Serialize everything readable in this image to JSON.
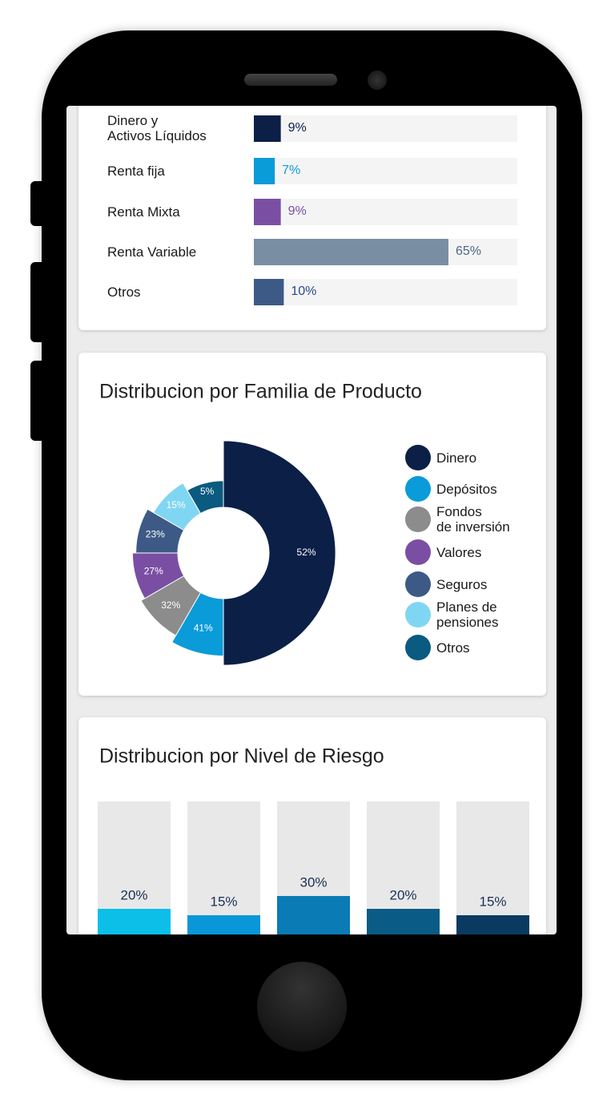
{
  "chart_data": [
    {
      "type": "bar",
      "orientation": "horizontal",
      "categories": [
        "Dinero y\nActivos Líquidos",
        "Renta fija",
        "Renta Mixta",
        "Renta Variable",
        "Otros"
      ],
      "values": [
        9,
        7,
        9,
        65,
        10
      ],
      "value_labels": [
        "9%",
        "7%",
        "9%",
        "65%",
        "10%"
      ],
      "colors": [
        "#0b1f47",
        "#0a9bd9",
        "#7a4fa3",
        "#7a8ea3",
        "#3d5a86"
      ],
      "label_colors": [
        "#0b1f47",
        "#0a9bd9",
        "#7a4fa3",
        "#4d6684",
        "#2c4a8a"
      ],
      "xlim": [
        0,
        88
      ]
    },
    {
      "type": "pie",
      "title": "Distribucion por Familia de Producto",
      "categories": [
        "Dinero",
        "Depósitos",
        "Fondos\nde inversión",
        "Valores",
        "Seguros",
        "Planes de\npensiones",
        "Otros"
      ],
      "values": [
        52,
        41,
        32,
        27,
        23,
        15,
        5
      ],
      "value_labels": [
        "52%",
        "41%",
        "32%",
        "27%",
        "23%",
        "15%",
        "5%"
      ],
      "colors": [
        "#0b1f47",
        "#0a9bd9",
        "#8c8c8c",
        "#7a4fa3",
        "#3d5a86",
        "#7fd6f3",
        "#0b5a80"
      ]
    },
    {
      "type": "bar",
      "title": "Distribucion por Nivel de Riesgo",
      "values": [
        20,
        15,
        30,
        20,
        15
      ],
      "value_labels": [
        "20%",
        "15%",
        "30%",
        "20%",
        "15%"
      ],
      "colors": [
        "#0bbfe8",
        "#0a97d9",
        "#0a7bb5",
        "#0a5b86",
        "#0a3a60"
      ],
      "ylim": [
        0,
        100
      ]
    }
  ]
}
